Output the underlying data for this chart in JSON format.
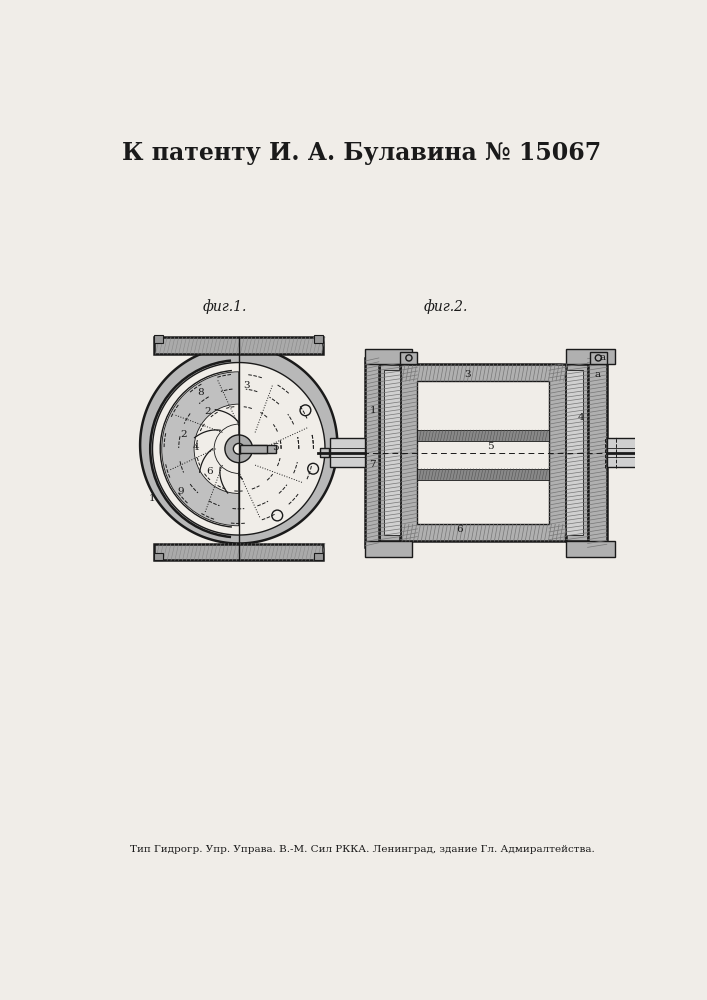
{
  "title": "К патенту И. А. Булавина № 15067",
  "footer": "Тип Гидрогр. Упр. Управа. В.-М. Сил РККА. Ленинград, здание Гл. Адмиралтейства.",
  "fig1_label": "фиг.1.",
  "fig2_label": "фиг.2.",
  "bg_color": "#f0ede8",
  "line_color": "#1a1a1a",
  "fill_dark": "#555555",
  "fill_medium": "#888888",
  "fill_light": "#cccccc",
  "fill_hatch": "#777777",
  "title_fontsize": 17,
  "footer_fontsize": 7.5,
  "label_fontsize": 10
}
